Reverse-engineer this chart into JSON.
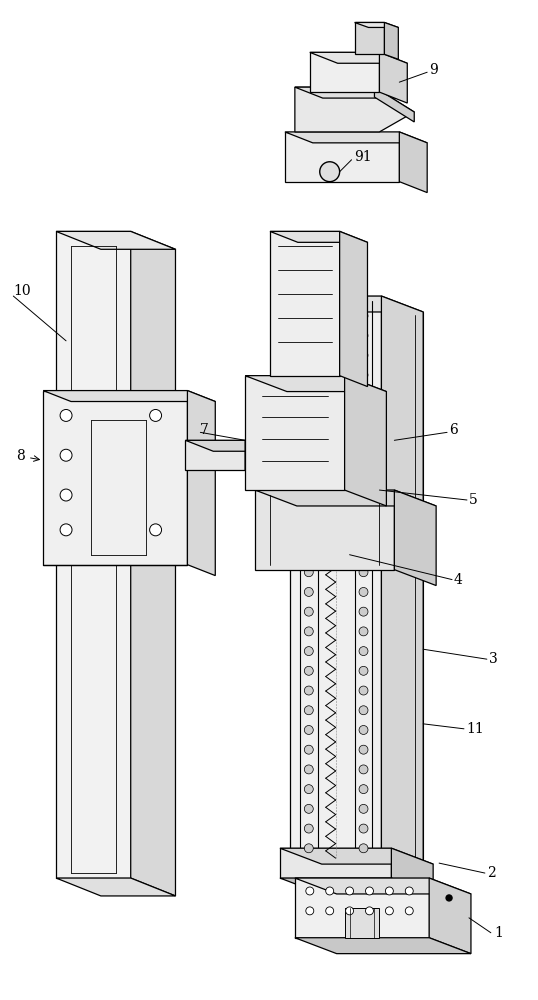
{
  "background_color": "#ffffff",
  "line_color": "#000000",
  "lw": 0.8,
  "figsize": [
    5.38,
    10.0
  ],
  "dpi": 100
}
